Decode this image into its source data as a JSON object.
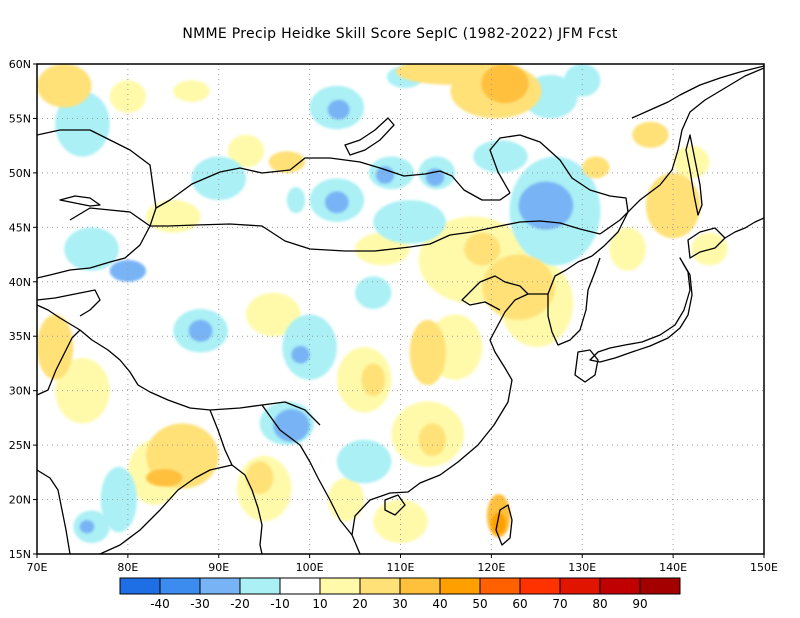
{
  "title": "NMME Precip Heidke Skill Score SepIC (1982-2022) JFM Fcst",
  "map": {
    "lon_range": [
      70,
      150
    ],
    "lat_range": [
      15,
      60
    ],
    "lon_ticks": [
      "70E",
      "80E",
      "90E",
      "100E",
      "110E",
      "120E",
      "130E",
      "140E",
      "150E"
    ],
    "lat_ticks": [
      "15N",
      "20N",
      "25N",
      "30N",
      "35N",
      "40N",
      "45N",
      "50N",
      "55N",
      "60N"
    ],
    "grid": "dotted"
  },
  "colorbar": {
    "labels": [
      "-40",
      "-30",
      "-20",
      "-10",
      "10",
      "20",
      "30",
      "40",
      "50",
      "60",
      "70",
      "80",
      "90"
    ],
    "colors": [
      "#1e6ee6",
      "#3c8cf0",
      "#78b4f5",
      "#aaf0f5",
      "#ffffff",
      "#fffaaa",
      "#ffe178",
      "#ffc03c",
      "#ffa000",
      "#ff6000",
      "#ff3200",
      "#e11400",
      "#c00000",
      "#a50000"
    ]
  },
  "skill_patches": [
    {
      "lon": 121.5,
      "lat": 58.2,
      "rx": 2.6,
      "ry": 1.8,
      "color": "#ffc03c"
    },
    {
      "lon": 115.5,
      "lat": 59.3,
      "rx": 6,
      "ry": 1.2,
      "color": "#ffe178"
    },
    {
      "lon": 120.5,
      "lat": 57.5,
      "rx": 5,
      "ry": 2.5,
      "color": "#ffe178"
    },
    {
      "lon": 126.5,
      "lat": 57,
      "rx": 3,
      "ry": 2,
      "color": "#aaf0f5"
    },
    {
      "lon": 130,
      "lat": 58.5,
      "rx": 2,
      "ry": 1.5,
      "color": "#aaf0f5"
    },
    {
      "lon": 110.5,
      "lat": 58.8,
      "rx": 2,
      "ry": 1,
      "color": "#aaf0f5"
    },
    {
      "lon": 103.2,
      "lat": 55.8,
      "rx": 1.2,
      "ry": 0.9,
      "color": "#78b4f5"
    },
    {
      "lon": 103,
      "lat": 56,
      "rx": 3,
      "ry": 2,
      "color": "#aaf0f5"
    },
    {
      "lon": 75,
      "lat": 54.5,
      "rx": 3,
      "ry": 3,
      "color": "#aaf0f5"
    },
    {
      "lon": 73,
      "lat": 58,
      "rx": 3,
      "ry": 2,
      "color": "#ffe178"
    },
    {
      "lon": 80,
      "lat": 57,
      "rx": 2,
      "ry": 1.5,
      "color": "#fffaaa"
    },
    {
      "lon": 87,
      "lat": 57.5,
      "rx": 2,
      "ry": 1,
      "color": "#fffaaa"
    },
    {
      "lon": 93,
      "lat": 52,
      "rx": 2,
      "ry": 1.5,
      "color": "#fffaaa"
    },
    {
      "lon": 97.5,
      "lat": 51,
      "rx": 2,
      "ry": 1,
      "color": "#ffe178"
    },
    {
      "lon": 90,
      "lat": 49.5,
      "rx": 3,
      "ry": 2,
      "color": "#aaf0f5"
    },
    {
      "lon": 109,
      "lat": 50,
      "rx": 2.5,
      "ry": 1.5,
      "color": "#aaf0f5"
    },
    {
      "lon": 108.3,
      "lat": 49.8,
      "rx": 1,
      "ry": 0.8,
      "color": "#78b4f5"
    },
    {
      "lon": 113.8,
      "lat": 49.6,
      "rx": 1,
      "ry": 0.8,
      "color": "#78b4f5"
    },
    {
      "lon": 114,
      "lat": 50,
      "rx": 2,
      "ry": 1.5,
      "color": "#aaf0f5"
    },
    {
      "lon": 121,
      "lat": 51.5,
      "rx": 3,
      "ry": 1.5,
      "color": "#aaf0f5"
    },
    {
      "lon": 103,
      "lat": 47.3,
      "rx": 1.3,
      "ry": 1,
      "color": "#78b4f5"
    },
    {
      "lon": 103,
      "lat": 47.5,
      "rx": 3,
      "ry": 2,
      "color": "#aaf0f5"
    },
    {
      "lon": 98.5,
      "lat": 47.5,
      "rx": 1,
      "ry": 1.2,
      "color": "#aaf0f5"
    },
    {
      "lon": 126,
      "lat": 47,
      "rx": 3,
      "ry": 2.2,
      "color": "#78b4f5"
    },
    {
      "lon": 127,
      "lat": 46.5,
      "rx": 5,
      "ry": 5,
      "color": "#aaf0f5"
    },
    {
      "lon": 111,
      "lat": 45.5,
      "rx": 4,
      "ry": 2,
      "color": "#aaf0f5"
    },
    {
      "lon": 118,
      "lat": 42,
      "rx": 6,
      "ry": 4,
      "color": "#fffaaa"
    },
    {
      "lon": 119,
      "lat": 43,
      "rx": 2,
      "ry": 1.5,
      "color": "#ffe178"
    },
    {
      "lon": 123,
      "lat": 39.5,
      "rx": 4,
      "ry": 3,
      "color": "#ffe178"
    },
    {
      "lon": 125,
      "lat": 38,
      "rx": 4,
      "ry": 4,
      "color": "#fffaaa"
    },
    {
      "lon": 108,
      "lat": 43,
      "rx": 3,
      "ry": 1.5,
      "color": "#fffaaa"
    },
    {
      "lon": 85,
      "lat": 46,
      "rx": 3,
      "ry": 1.5,
      "color": "#fffaaa"
    },
    {
      "lon": 76,
      "lat": 43,
      "rx": 3,
      "ry": 2,
      "color": "#aaf0f5"
    },
    {
      "lon": 80,
      "lat": 41,
      "rx": 2,
      "ry": 1,
      "color": "#78b4f5"
    },
    {
      "lon": 88,
      "lat": 35.5,
      "rx": 1.3,
      "ry": 1,
      "color": "#78b4f5"
    },
    {
      "lon": 88,
      "lat": 35.5,
      "rx": 3,
      "ry": 2,
      "color": "#aaf0f5"
    },
    {
      "lon": 100,
      "lat": 34,
      "rx": 3,
      "ry": 3,
      "color": "#aaf0f5"
    },
    {
      "lon": 99,
      "lat": 33.3,
      "rx": 1,
      "ry": 0.8,
      "color": "#78b4f5"
    },
    {
      "lon": 96,
      "lat": 37,
      "rx": 3,
      "ry": 2,
      "color": "#fffaaa"
    },
    {
      "lon": 107,
      "lat": 39,
      "rx": 2,
      "ry": 1.5,
      "color": "#aaf0f5"
    },
    {
      "lon": 113,
      "lat": 33.5,
      "rx": 2,
      "ry": 3,
      "color": "#ffe178"
    },
    {
      "lon": 116,
      "lat": 34,
      "rx": 3,
      "ry": 3,
      "color": "#fffaaa"
    },
    {
      "lon": 106,
      "lat": 31,
      "rx": 3,
      "ry": 3,
      "color": "#fffaaa"
    },
    {
      "lon": 107,
      "lat": 31,
      "rx": 1.3,
      "ry": 1.5,
      "color": "#ffe178"
    },
    {
      "lon": 98,
      "lat": 26.8,
      "rx": 2,
      "ry": 1.5,
      "color": "#78b4f5"
    },
    {
      "lon": 97.5,
      "lat": 27,
      "rx": 3,
      "ry": 2,
      "color": "#aaf0f5"
    },
    {
      "lon": 86,
      "lat": 24,
      "rx": 4,
      "ry": 3,
      "color": "#ffe178"
    },
    {
      "lon": 83,
      "lat": 22.5,
      "rx": 3,
      "ry": 3,
      "color": "#fffaaa"
    },
    {
      "lon": 84,
      "lat": 22,
      "rx": 2,
      "ry": 0.8,
      "color": "#ffc03c"
    },
    {
      "lon": 75,
      "lat": 30,
      "rx": 3,
      "ry": 3,
      "color": "#fffaaa"
    },
    {
      "lon": 72,
      "lat": 34,
      "rx": 2,
      "ry": 3,
      "color": "#ffe178"
    },
    {
      "lon": 79,
      "lat": 20,
      "rx": 2,
      "ry": 3,
      "color": "#aaf0f5"
    },
    {
      "lon": 76,
      "lat": 17.5,
      "rx": 2,
      "ry": 1.5,
      "color": "#aaf0f5"
    },
    {
      "lon": 75.5,
      "lat": 17.5,
      "rx": 0.8,
      "ry": 0.6,
      "color": "#78b4f5"
    },
    {
      "lon": 95,
      "lat": 21,
      "rx": 3,
      "ry": 3,
      "color": "#fffaaa"
    },
    {
      "lon": 94.5,
      "lat": 22,
      "rx": 1.5,
      "ry": 1.5,
      "color": "#ffe178"
    },
    {
      "lon": 104,
      "lat": 20,
      "rx": 2,
      "ry": 2,
      "color": "#fffaaa"
    },
    {
      "lon": 106,
      "lat": 23.5,
      "rx": 3,
      "ry": 2,
      "color": "#aaf0f5"
    },
    {
      "lon": 113,
      "lat": 26,
      "rx": 4,
      "ry": 3,
      "color": "#fffaaa"
    },
    {
      "lon": 113.5,
      "lat": 25.5,
      "rx": 1.5,
      "ry": 1.5,
      "color": "#ffe178"
    },
    {
      "lon": 110,
      "lat": 18,
      "rx": 3,
      "ry": 2,
      "color": "#fffaaa"
    },
    {
      "lon": 120.8,
      "lat": 17.8,
      "rx": 0.8,
      "ry": 1,
      "color": "#ffa000"
    },
    {
      "lon": 120.8,
      "lat": 18.5,
      "rx": 1.3,
      "ry": 2,
      "color": "#ffc03c"
    },
    {
      "lon": 140,
      "lat": 47,
      "rx": 3,
      "ry": 3,
      "color": "#ffe178"
    },
    {
      "lon": 142,
      "lat": 51,
      "rx": 2,
      "ry": 1.5,
      "color": "#fffaaa"
    },
    {
      "lon": 144,
      "lat": 43,
      "rx": 2,
      "ry": 1.5,
      "color": "#fffaaa"
    },
    {
      "lon": 135,
      "lat": 43,
      "rx": 2,
      "ry": 2,
      "color": "#fffaaa"
    },
    {
      "lon": 131.5,
      "lat": 50.5,
      "rx": 1.5,
      "ry": 1,
      "color": "#ffe178"
    },
    {
      "lon": 137.5,
      "lat": 53.5,
      "rx": 2,
      "ry": 1.2,
      "color": "#ffe178"
    }
  ]
}
